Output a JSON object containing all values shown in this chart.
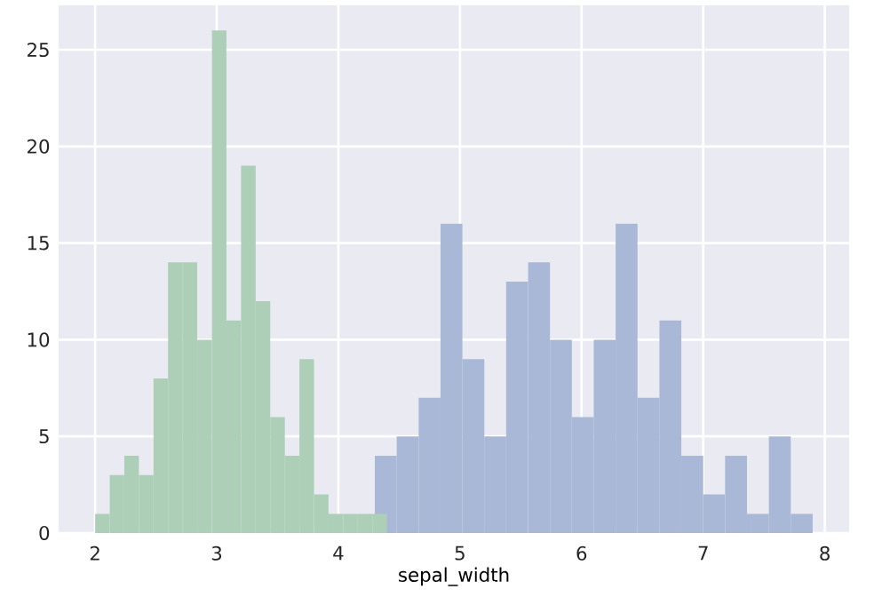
{
  "chart_data": [
    {
      "type": "histogram",
      "xlabel": "sepal_width",
      "color": "#a9b8d6",
      "bins": [
        4.3,
        4.48,
        4.66,
        4.84,
        5.02,
        5.2,
        5.38,
        5.56,
        5.74,
        5.92,
        6.1,
        6.28,
        6.46,
        6.64,
        6.82,
        7.0,
        7.18,
        7.36,
        7.54,
        7.72,
        7.9
      ],
      "values": [
        4,
        5,
        7,
        16,
        9,
        5,
        13,
        14,
        10,
        6,
        10,
        16,
        7,
        11,
        4,
        2,
        4,
        1,
        5,
        1
      ],
      "xlim": [
        1.7,
        8.2
      ],
      "ylim": [
        0,
        27.3
      ],
      "xticks": [
        2,
        3,
        4,
        5,
        6,
        7,
        8
      ],
      "yticks": [
        0,
        5,
        10,
        15,
        20,
        25
      ],
      "grid": true
    },
    {
      "type": "histogram",
      "color": "#adcfb8",
      "bins": [
        2.0,
        2.12,
        2.24,
        2.36,
        2.48,
        2.6,
        2.72,
        2.84,
        2.96,
        3.08,
        3.2,
        3.32,
        3.44,
        3.56,
        3.68,
        3.8,
        3.92,
        4.04,
        4.16,
        4.28,
        4.4
      ],
      "values": [
        1,
        3,
        4,
        3,
        8,
        14,
        14,
        10,
        26,
        11,
        19,
        12,
        6,
        4,
        9,
        2,
        1,
        1,
        1,
        1
      ],
      "xlim": [
        1.7,
        8.2
      ],
      "ylim": [
        0,
        27.3
      ],
      "xticks": [
        2,
        3,
        4,
        5,
        6,
        7,
        8
      ],
      "yticks": [
        0,
        5,
        10,
        15,
        20,
        25
      ],
      "tick_labels": false
    }
  ]
}
